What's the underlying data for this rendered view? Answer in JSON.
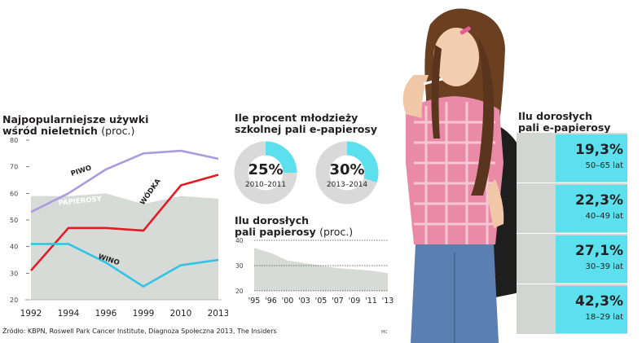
{
  "colors": {
    "beer": "#a99bdc",
    "vodka": "#e31b23",
    "wine": "#33c3e4",
    "cigarettes_area": "#d6dbd8",
    "cyan": "#5ce0ee",
    "ring_grey": "#d9d9d9",
    "panel_bg": "#d1d6d3"
  },
  "icons": [
    "girl-with-cigarette-photo"
  ],
  "section1": {
    "title_line1": "Najpopularniejsze używki",
    "title_line2": "wśród nieletnich",
    "title_unit": "(proc.)"
  },
  "section2": {
    "title_line1": "Ile procent młodzieży",
    "title_line2": "szkolnej pali e-papierosy"
  },
  "section3": {
    "title_line1": "Ilu dorosłych",
    "title_line2": "pali papierosy",
    "title_unit": "(proc.)"
  },
  "section4": {
    "title_line1": "Ilu dorosłych",
    "title_line2": "pali e-papierosy"
  },
  "source": "Źródło: KBPN, Roswell Park Cancer Institute, Diagnoza Społeczna 2013, The Insiders",
  "credit": "MC",
  "chart_data": [
    {
      "type": "line",
      "x": [
        "1992",
        "1994",
        "1996",
        "1999",
        "2010",
        "2013"
      ],
      "ylim": [
        20,
        80
      ],
      "yticks": [
        "20",
        "30",
        "40",
        "50",
        "60",
        "70",
        "80"
      ],
      "series": [
        {
          "name": "PIWO",
          "type": "line",
          "values": [
            53,
            60,
            69,
            75,
            76,
            73
          ]
        },
        {
          "name": "WÓDKA",
          "type": "line",
          "values": [
            31,
            47,
            47,
            46,
            63,
            67
          ]
        },
        {
          "name": "WINO",
          "type": "line",
          "values": [
            41,
            41,
            34,
            25,
            33,
            35
          ]
        },
        {
          "name": "PAPIEROSY",
          "type": "area",
          "values": [
            59,
            59,
            60,
            56,
            59,
            58
          ]
        }
      ]
    },
    {
      "type": "pie",
      "items": [
        {
          "label": "25%",
          "value": 25,
          "period": "2010–2011"
        },
        {
          "label": "30%",
          "value": 30,
          "period": "2013–2014"
        }
      ]
    },
    {
      "type": "area",
      "x": [
        "'95",
        "'96",
        "'00",
        "'03",
        "'05",
        "'07",
        "'09",
        "'11",
        "'13"
      ],
      "ylim": [
        20,
        40
      ],
      "yticks": [
        "20",
        "30",
        "40"
      ],
      "values": [
        37,
        35,
        32,
        31,
        30,
        29,
        28.5,
        28,
        27
      ]
    },
    {
      "type": "table",
      "rows": [
        {
          "value": "19,3%",
          "age": "50–65 lat"
        },
        {
          "value": "22,3%",
          "age": "40–49 lat"
        },
        {
          "value": "27,1%",
          "age": "30–39 lat"
        },
        {
          "value": "42,3%",
          "age": "18–29 lat"
        }
      ]
    }
  ]
}
